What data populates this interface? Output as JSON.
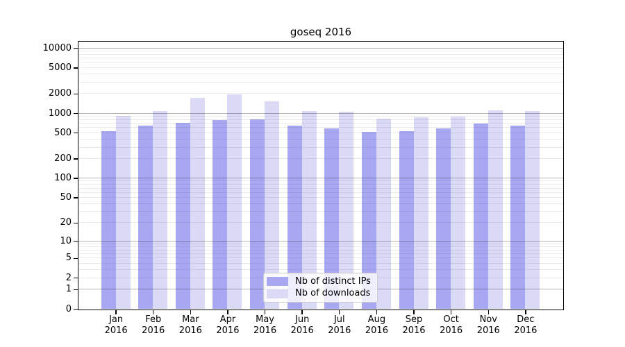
{
  "title": "goseq 2016",
  "chart_data": {
    "type": "bar",
    "title": "goseq 2016",
    "y_scale": "log10(1+y)",
    "grid": "on",
    "legend_position": "lower center inside plot",
    "xlabel": "",
    "ylabel": "",
    "year_label": "2016",
    "month_labels": [
      "Jan",
      "Feb",
      "Mar",
      "Apr",
      "May",
      "Jun",
      "Jul",
      "Aug",
      "Sep",
      "Oct",
      "Nov",
      "Dec"
    ],
    "categories": [
      "Jan 2016",
      "Feb 2016",
      "Mar 2016",
      "Apr 2016",
      "May 2016",
      "Jun 2016",
      "Jul 2016",
      "Aug 2016",
      "Sep 2016",
      "Oct 2016",
      "Nov 2016",
      "Dec 2016"
    ],
    "series": [
      {
        "name": "Nb of distinct IPs",
        "color": "#a8a8f2",
        "values": [
          530,
          640,
          705,
          775,
          805,
          640,
          580,
          515,
          535,
          590,
          690,
          640
        ]
      },
      {
        "name": "Nb of downloads",
        "color": "#dadaf7",
        "values": [
          905,
          1090,
          1720,
          1950,
          1515,
          1085,
          1045,
          825,
          870,
          875,
          1110,
          1090
        ]
      }
    ],
    "y_ticks": [
      0,
      1,
      2,
      5,
      10,
      20,
      50,
      100,
      200,
      500,
      1000,
      2000,
      5000,
      10000
    ],
    "y_max": 12500,
    "grid_colors": {
      "major": "#b3b3b3",
      "minor": "#ececec"
    }
  }
}
